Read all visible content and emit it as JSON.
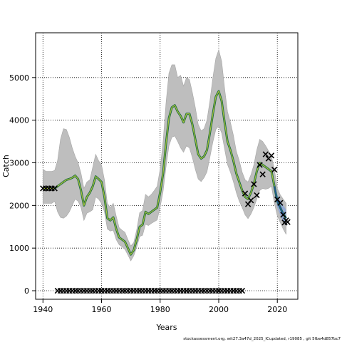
{
  "chart_data": {
    "type": "line",
    "title": "",
    "xlabel": "Years",
    "ylabel": "Catch",
    "xlim": [
      1937.5,
      2027
    ],
    "ylim": [
      -200,
      6050
    ],
    "x_ticks": [
      1940,
      1960,
      1980,
      2000,
      2020
    ],
    "y_ticks": [
      0,
      1000,
      2000,
      3000,
      4000,
      5000
    ],
    "grid": true,
    "grid_style": "dotted",
    "legend": "none",
    "source_note": "stockassessment.org, wit27.3a47d_2025_ICupdated, r19085 , git 5fbe4d857bc7",
    "colors": {
      "band": "#bebebe",
      "band_edge": "#a6a6a6",
      "estimate_line": "#1c6b40",
      "estimate_highlight": "#a8c23a",
      "forecast_band": "#8ca6d9",
      "forecast_line": "#1f4fa0",
      "observation": "#000000",
      "grid": "#000000"
    },
    "series": [
      {
        "role": "estimate",
        "x": [
          1940,
          1941,
          1942,
          1943,
          1944,
          1945,
          1946,
          1947,
          1948,
          1949,
          1950,
          1951,
          1952,
          1953,
          1954,
          1955,
          1956,
          1957,
          1958,
          1959,
          1960,
          1961,
          1962,
          1963,
          1964,
          1965,
          1966,
          1967,
          1968,
          1969,
          1970,
          1971,
          1972,
          1973,
          1974,
          1975,
          1976,
          1977,
          1978,
          1979,
          1980,
          1981,
          1982,
          1983,
          1984,
          1985,
          1986,
          1987,
          1988,
          1989,
          1990,
          1991,
          1992,
          1993,
          1994,
          1995,
          1996,
          1997,
          1998,
          1999,
          2000,
          2001,
          2002,
          2003,
          2004,
          2005,
          2006,
          2007,
          2008,
          2009,
          2010,
          2011,
          2012,
          2013,
          2014,
          2015,
          2016,
          2017,
          2018,
          2019,
          2020,
          2021,
          2022,
          2023
        ],
        "y": [
          2400,
          2400,
          2400,
          2400,
          2400,
          2450,
          2500,
          2550,
          2600,
          2620,
          2650,
          2700,
          2620,
          2350,
          2000,
          2200,
          2300,
          2450,
          2680,
          2620,
          2550,
          2200,
          1700,
          1650,
          1720,
          1450,
          1250,
          1200,
          1150,
          1000,
          850,
          950,
          1200,
          1500,
          1550,
          1850,
          1800,
          1850,
          1900,
          1950,
          2300,
          2750,
          3450,
          4050,
          4300,
          4350,
          4200,
          4100,
          3950,
          4150,
          4150,
          3900,
          3550,
          3200,
          3100,
          3150,
          3300,
          3700,
          4150,
          4550,
          4680,
          4450,
          3950,
          3500,
          3300,
          3050,
          2750,
          2550,
          2350,
          2200,
          2150,
          2300,
          2500,
          2800,
          3000,
          2950,
          2900,
          2850,
          2800,
          2450,
          2100,
          1950,
          1800,
          1700
        ],
        "lower": [
          2050,
          2050,
          2050,
          2050,
          2100,
          1850,
          1720,
          1700,
          1750,
          1850,
          2000,
          2150,
          2100,
          1950,
          1650,
          1820,
          1850,
          1900,
          2200,
          2150,
          2050,
          1850,
          1450,
          1400,
          1420,
          1200,
          1080,
          1030,
          970,
          840,
          700,
          820,
          1020,
          1270,
          1300,
          1560,
          1530,
          1580,
          1620,
          1660,
          1950,
          2330,
          2900,
          3400,
          3600,
          3630,
          3500,
          3350,
          3250,
          3400,
          3350,
          3120,
          2850,
          2620,
          2560,
          2650,
          2790,
          3130,
          3490,
          3780,
          3870,
          3700,
          3330,
          2960,
          2780,
          2560,
          2300,
          2100,
          1950,
          1780,
          1690,
          1800,
          1950,
          2150,
          2350,
          2400,
          2380,
          2400,
          2450,
          2050,
          1760,
          1600,
          1450,
          1320
        ],
        "upper": [
          2850,
          2800,
          2800,
          2800,
          2820,
          3050,
          3550,
          3800,
          3780,
          3600,
          3350,
          3150,
          3000,
          2750,
          2400,
          2550,
          2600,
          2900,
          3200,
          3050,
          2950,
          2600,
          2050,
          1950,
          2050,
          1750,
          1480,
          1420,
          1370,
          1200,
          1050,
          1130,
          1430,
          1830,
          1880,
          2260,
          2200,
          2260,
          2350,
          2450,
          2850,
          3500,
          4400,
          5100,
          5300,
          5300,
          5000,
          5050,
          4800,
          5000,
          4950,
          4650,
          4300,
          3900,
          3750,
          3800,
          4000,
          4450,
          5000,
          5450,
          5650,
          5380,
          4750,
          4200,
          3950,
          3650,
          3270,
          3050,
          2780,
          2600,
          2550,
          2720,
          2950,
          3300,
          3550,
          3500,
          3400,
          3280,
          3150,
          2850,
          2400,
          2250,
          2150,
          2050
        ]
      },
      {
        "role": "forecast",
        "x": [
          2019,
          2020,
          2021,
          2022,
          2023
        ],
        "y": [
          2450,
          2100,
          1950,
          1800,
          1700
        ],
        "lower": [
          2300,
          1950,
          1780,
          1620,
          1520
        ],
        "upper": [
          2600,
          2260,
          2130,
          2000,
          1900
        ]
      },
      {
        "role": "observed",
        "marker": "x",
        "x": [
          1940,
          1941,
          1942,
          1943,
          1944,
          1945,
          1946,
          1947,
          1948,
          1949,
          1950,
          1951,
          1952,
          1953,
          1954,
          1955,
          1956,
          1957,
          1958,
          1959,
          1960,
          1961,
          1962,
          1963,
          1964,
          1965,
          1966,
          1967,
          1968,
          1969,
          1970,
          1971,
          1972,
          1973,
          1974,
          1975,
          1976,
          1977,
          1978,
          1979,
          1980,
          1981,
          1982,
          1983,
          1984,
          1985,
          1986,
          1987,
          1988,
          1989,
          1990,
          1991,
          1992,
          1993,
          1994,
          1995,
          1996,
          1997,
          1998,
          1999,
          2000,
          2001,
          2002,
          2003,
          2004,
          2005,
          2006,
          2007,
          2008,
          2009,
          2010,
          2011,
          2012,
          2013,
          2014,
          2015,
          2016,
          2017,
          2018,
          2019,
          2020,
          2021,
          2022,
          2023
        ],
        "y": [
          2400,
          2400,
          2400,
          2400,
          2400,
          0,
          0,
          0,
          0,
          0,
          0,
          0,
          0,
          0,
          0,
          0,
          0,
          0,
          0,
          0,
          0,
          0,
          0,
          0,
          0,
          0,
          0,
          0,
          0,
          0,
          0,
          0,
          0,
          0,
          0,
          0,
          0,
          0,
          0,
          0,
          0,
          0,
          0,
          0,
          0,
          0,
          0,
          0,
          0,
          0,
          0,
          0,
          0,
          0,
          0,
          0,
          0,
          0,
          0,
          0,
          0,
          0,
          0,
          0,
          0,
          0,
          0,
          0,
          0,
          2280,
          2030,
          2120,
          2500,
          2240,
          2950,
          2730,
          3200,
          3100,
          3170,
          2840,
          2140,
          2060,
          1780,
          1650
        ]
      },
      {
        "role": "observed",
        "marker": "x",
        "x": [
          2022.5,
          2023.5
        ],
        "y": [
          1600,
          1610
        ]
      }
    ]
  }
}
